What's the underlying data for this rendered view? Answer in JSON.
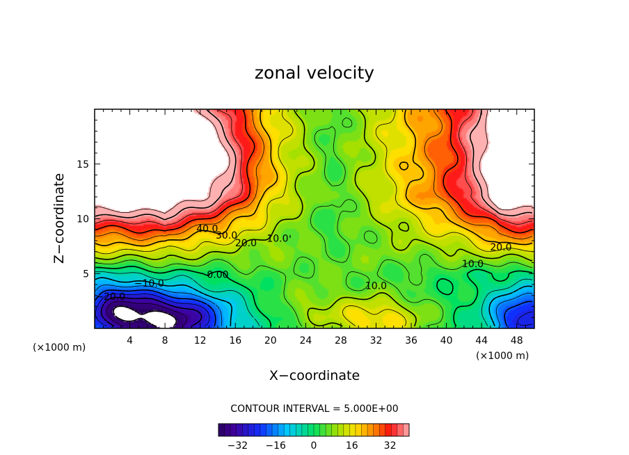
{
  "chart_data": {
    "type": "heatmap",
    "title": "zonal velocity",
    "xlabel": "X−coordinate",
    "ylabel": "Z−coordinate",
    "x_units": "(×1000 m)",
    "x_units_right": "(×1000 m)",
    "xlim": [
      0,
      50
    ],
    "ylim": [
      0,
      20
    ],
    "x_ticks": [
      4,
      8,
      12,
      16,
      20,
      24,
      28,
      32,
      36,
      40,
      44,
      48
    ],
    "y_ticks": [
      5,
      10,
      15
    ],
    "grid": false,
    "contour_interval_label": "CONTOUR INTERVAL = 5.000E+00",
    "contour_interval": 5.0,
    "colorbar": {
      "min": -40,
      "max": 40,
      "ticks": [
        -32,
        -16,
        0,
        16,
        32
      ],
      "tick_labels": [
        "−32",
        "−16",
        "0",
        "16",
        "32"
      ]
    },
    "contour_labels": [
      {
        "text": "40.0",
        "x": 12.8,
        "y": 8.8
      },
      {
        "text": "30.0",
        "x": 15.0,
        "y": 8.2
      },
      {
        "text": "20.0",
        "x": 17.2,
        "y": 7.5
      },
      {
        "text": "10.0",
        "x": 20.8,
        "y": 7.9
      },
      {
        "text": "0.00",
        "x": 14.0,
        "y": 4.6
      },
      {
        "text": "−10.0",
        "x": 6.2,
        "y": 3.8
      },
      {
        "text": "−20.0",
        "x": 1.8,
        "y": 2.6
      },
      {
        "text": "10.0",
        "x": 32.0,
        "y": 3.6
      },
      {
        "text": "20.0",
        "x": 46.2,
        "y": 7.1
      },
      {
        "text": "10.0",
        "x": 43.0,
        "y": 5.6
      }
    ],
    "field_features": [
      {
        "kind": "max",
        "x": 4,
        "y": 17,
        "value": 45
      },
      {
        "kind": "max",
        "x": 12,
        "y": 16,
        "value": 45
      },
      {
        "kind": "max",
        "x": 49,
        "y": 17,
        "value": 45
      },
      {
        "kind": "min",
        "x": 8,
        "y": 1,
        "value": -38
      },
      {
        "kind": "min",
        "x": 49,
        "y": 1,
        "value": -25
      },
      {
        "kind": "max",
        "x": 32,
        "y": 1,
        "value": 18
      }
    ]
  }
}
